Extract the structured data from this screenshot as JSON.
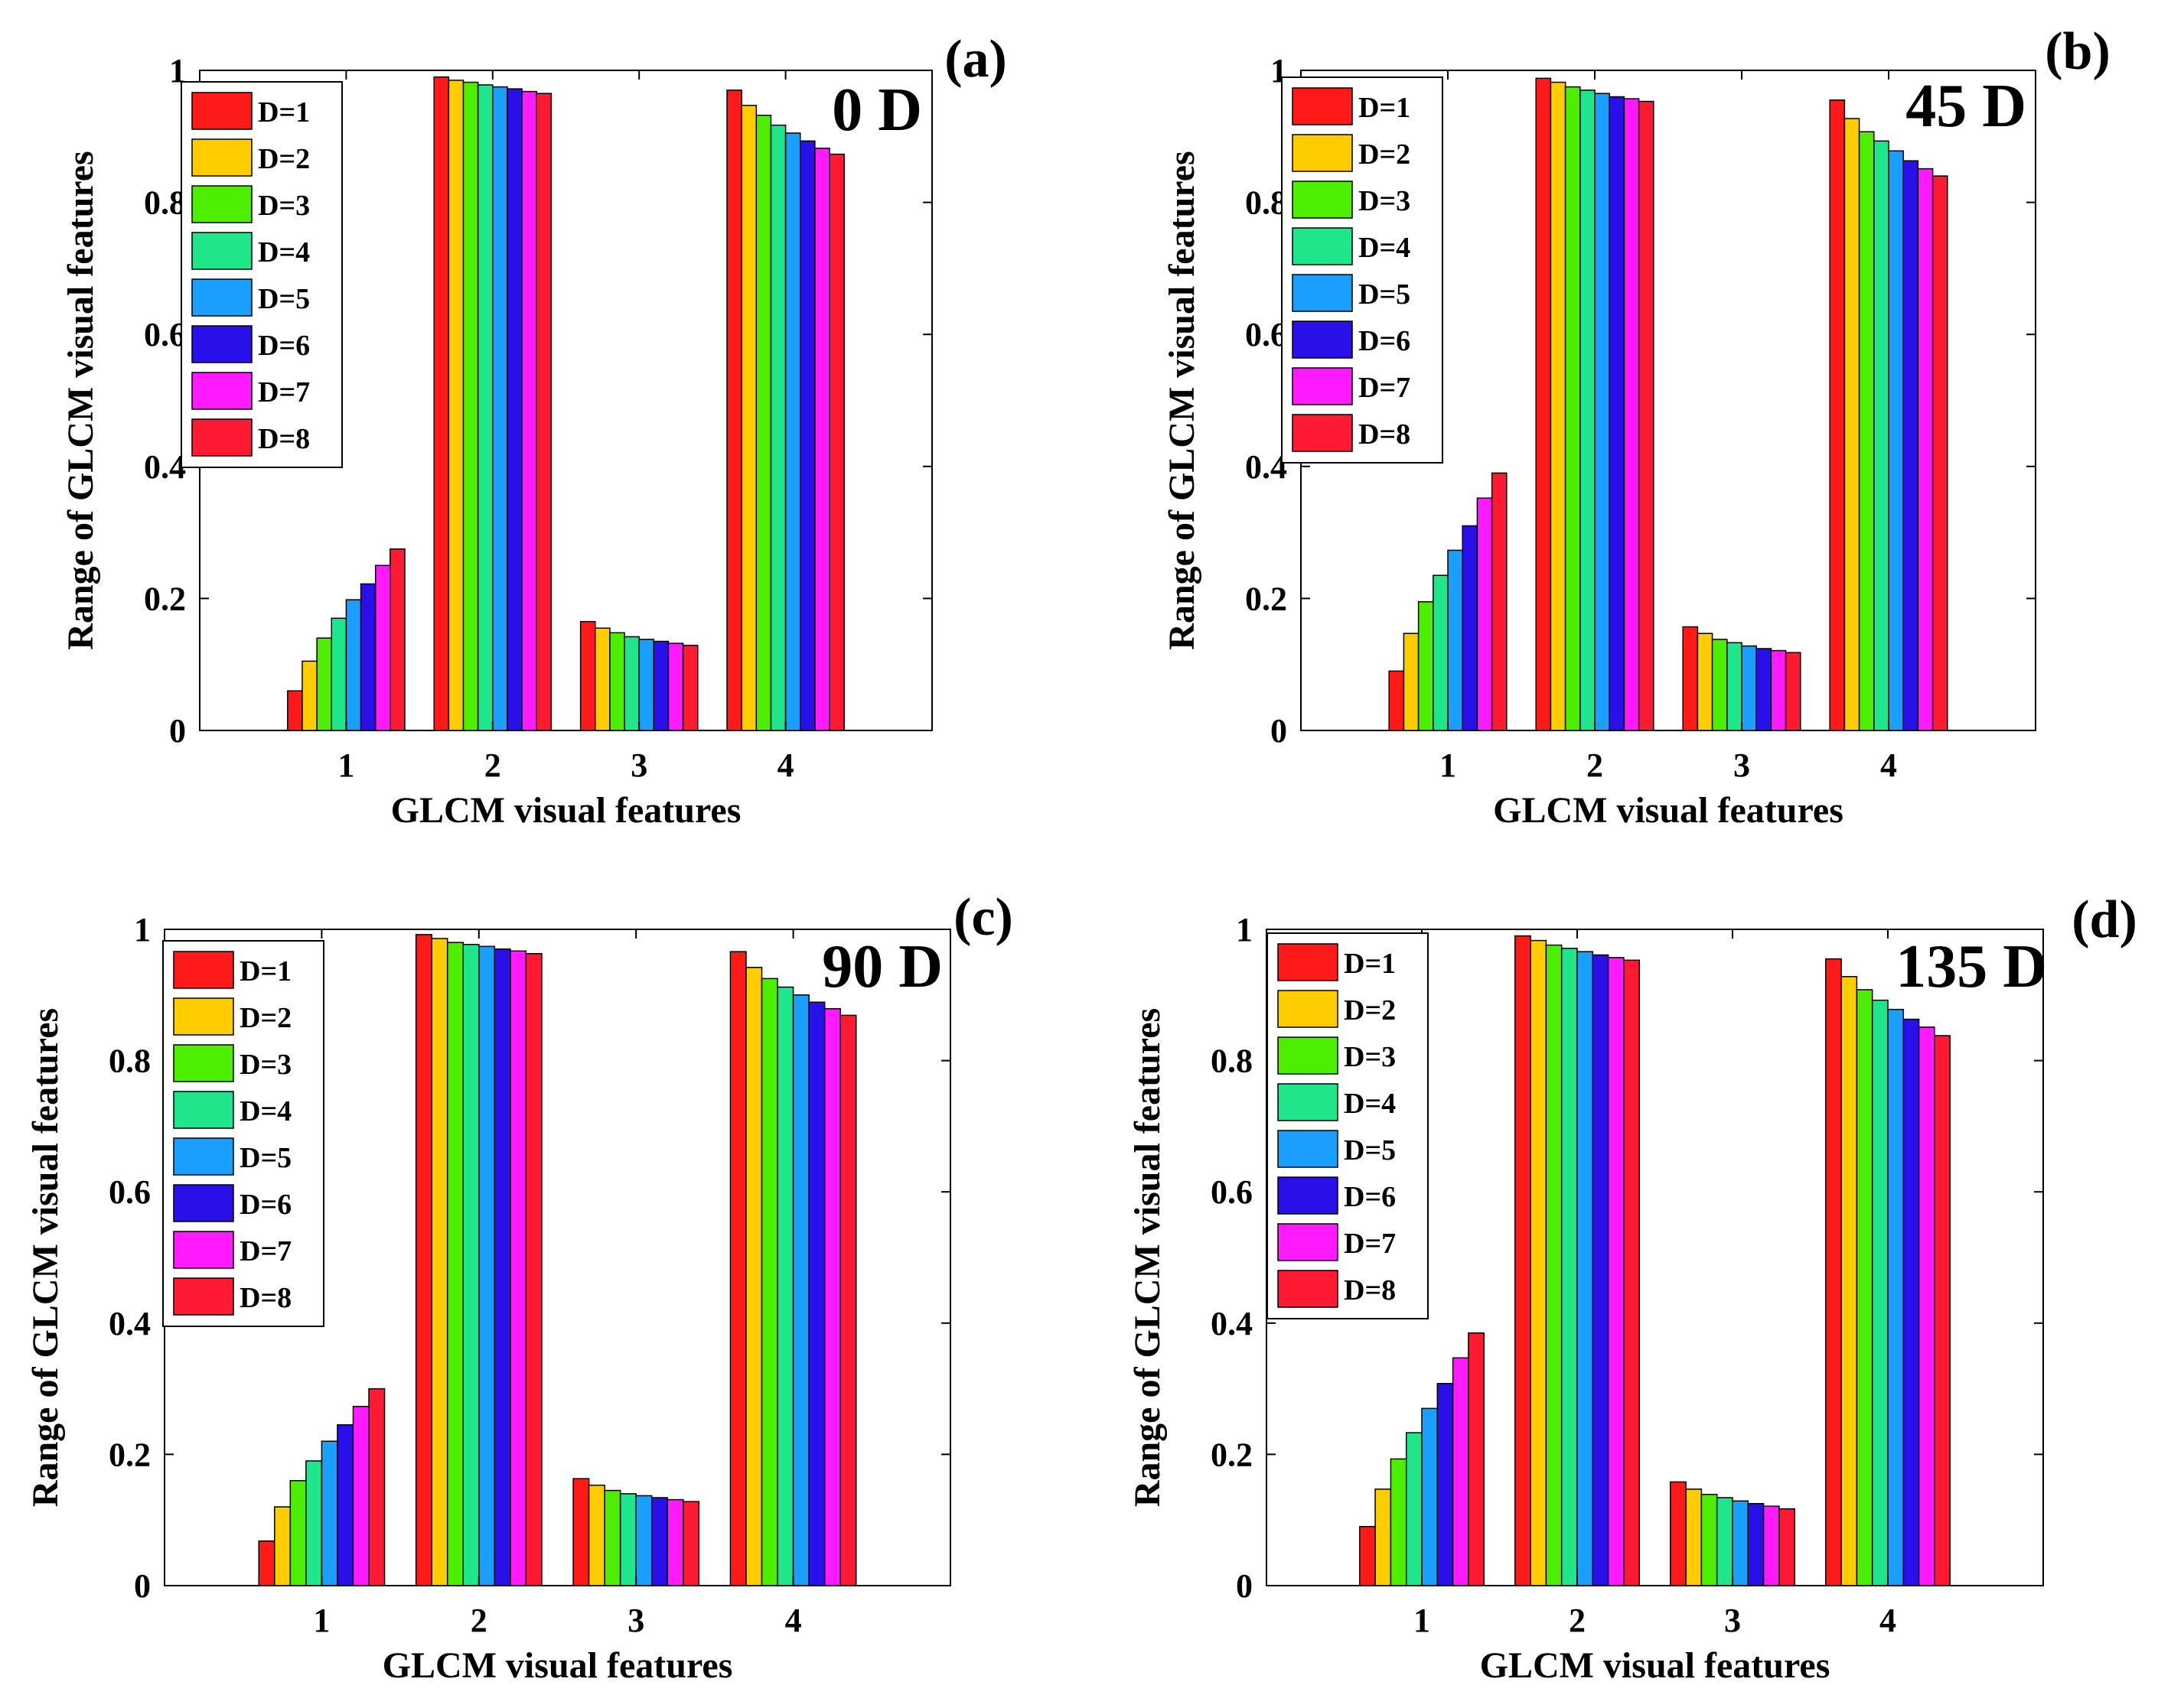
{
  "chart_data": [
    {
      "type": "bar",
      "panel_label": "(a)",
      "angle_label": "0 D",
      "title": "",
      "xlabel": "GLCM visual features",
      "ylabel": "Range of GLCM visual features",
      "categories": [
        "1",
        "2",
        "3",
        "4"
      ],
      "yticks": [
        "0",
        "0.2",
        "0.4",
        "0.6",
        "0.8",
        "1"
      ],
      "ylim": [
        0,
        1
      ],
      "grid": false,
      "legend_position": "top-left",
      "series": [
        {
          "name": "D=1",
          "color": "#ff1a1a",
          "values": [
            0.06,
            0.99,
            0.165,
            0.97
          ]
        },
        {
          "name": "D=2",
          "color": "#ffcc00",
          "values": [
            0.105,
            0.985,
            0.155,
            0.947
          ]
        },
        {
          "name": "D=3",
          "color": "#4dee00",
          "values": [
            0.14,
            0.982,
            0.148,
            0.932
          ]
        },
        {
          "name": "D=4",
          "color": "#1fe68a",
          "values": [
            0.17,
            0.978,
            0.142,
            0.917
          ]
        },
        {
          "name": "D=5",
          "color": "#1a9fff",
          "values": [
            0.198,
            0.975,
            0.138,
            0.905
          ]
        },
        {
          "name": "D=6",
          "color": "#2a10e8",
          "values": [
            0.222,
            0.972,
            0.135,
            0.893
          ]
        },
        {
          "name": "D=7",
          "color": "#ff1aff",
          "values": [
            0.25,
            0.968,
            0.132,
            0.882
          ]
        },
        {
          "name": "D=8",
          "color": "#ff1a33",
          "values": [
            0.275,
            0.965,
            0.129,
            0.873
          ]
        }
      ]
    },
    {
      "type": "bar",
      "panel_label": "(b)",
      "angle_label": "45 D",
      "title": "",
      "xlabel": "GLCM visual features",
      "ylabel": "Range of GLCM visual features",
      "categories": [
        "1",
        "2",
        "3",
        "4"
      ],
      "yticks": [
        "0",
        "0.2",
        "0.4",
        "0.6",
        "0.8",
        "1"
      ],
      "ylim": [
        0,
        1
      ],
      "grid": false,
      "legend_position": "top-left",
      "series": [
        {
          "name": "D=1",
          "color": "#ff1a1a",
          "values": [
            0.09,
            0.988,
            0.157,
            0.955
          ]
        },
        {
          "name": "D=2",
          "color": "#ffcc00",
          "values": [
            0.147,
            0.982,
            0.147,
            0.927
          ]
        },
        {
          "name": "D=3",
          "color": "#4dee00",
          "values": [
            0.195,
            0.975,
            0.138,
            0.907
          ]
        },
        {
          "name": "D=4",
          "color": "#1fe68a",
          "values": [
            0.235,
            0.97,
            0.133,
            0.893
          ]
        },
        {
          "name": "D=5",
          "color": "#1a9fff",
          "values": [
            0.273,
            0.965,
            0.128,
            0.878
          ]
        },
        {
          "name": "D=6",
          "color": "#2a10e8",
          "values": [
            0.31,
            0.96,
            0.124,
            0.863
          ]
        },
        {
          "name": "D=7",
          "color": "#ff1aff",
          "values": [
            0.352,
            0.957,
            0.121,
            0.851
          ]
        },
        {
          "name": "D=8",
          "color": "#ff1a33",
          "values": [
            0.39,
            0.953,
            0.118,
            0.84
          ]
        }
      ]
    },
    {
      "type": "bar",
      "panel_label": "(c)",
      "angle_label": "90 D",
      "title": "",
      "xlabel": "GLCM visual features",
      "ylabel": "Range of GLCM visual features",
      "categories": [
        "1",
        "2",
        "3",
        "4"
      ],
      "yticks": [
        "0",
        "0.2",
        "0.4",
        "0.6",
        "0.8",
        "1"
      ],
      "ylim": [
        0,
        1
      ],
      "grid": false,
      "legend_position": "top-left",
      "series": [
        {
          "name": "D=1",
          "color": "#ff1a1a",
          "values": [
            0.068,
            0.992,
            0.163,
            0.966
          ]
        },
        {
          "name": "D=2",
          "color": "#ffcc00",
          "values": [
            0.12,
            0.986,
            0.153,
            0.942
          ]
        },
        {
          "name": "D=3",
          "color": "#4dee00",
          "values": [
            0.16,
            0.98,
            0.145,
            0.925
          ]
        },
        {
          "name": "D=4",
          "color": "#1fe68a",
          "values": [
            0.19,
            0.977,
            0.14,
            0.912
          ]
        },
        {
          "name": "D=5",
          "color": "#1a9fff",
          "values": [
            0.22,
            0.974,
            0.137,
            0.9
          ]
        },
        {
          "name": "D=6",
          "color": "#2a10e8",
          "values": [
            0.245,
            0.97,
            0.134,
            0.889
          ]
        },
        {
          "name": "D=7",
          "color": "#ff1aff",
          "values": [
            0.273,
            0.967,
            0.131,
            0.879
          ]
        },
        {
          "name": "D=8",
          "color": "#ff1a33",
          "values": [
            0.3,
            0.963,
            0.128,
            0.869
          ]
        }
      ]
    },
    {
      "type": "bar",
      "panel_label": "(d)",
      "angle_label": "135 D",
      "title": "",
      "xlabel": "GLCM visual features",
      "ylabel": "Range of GLCM visual features",
      "categories": [
        "1",
        "2",
        "3",
        "4"
      ],
      "yticks": [
        "0",
        "0.2",
        "0.4",
        "0.6",
        "0.8",
        "1"
      ],
      "ylim": [
        0,
        1
      ],
      "grid": false,
      "legend_position": "top-left",
      "series": [
        {
          "name": "D=1",
          "color": "#ff1a1a",
          "values": [
            0.09,
            0.99,
            0.158,
            0.955
          ]
        },
        {
          "name": "D=2",
          "color": "#ffcc00",
          "values": [
            0.147,
            0.983,
            0.147,
            0.928
          ]
        },
        {
          "name": "D=3",
          "color": "#4dee00",
          "values": [
            0.193,
            0.976,
            0.139,
            0.908
          ]
        },
        {
          "name": "D=4",
          "color": "#1fe68a",
          "values": [
            0.233,
            0.971,
            0.134,
            0.892
          ]
        },
        {
          "name": "D=5",
          "color": "#1a9fff",
          "values": [
            0.27,
            0.966,
            0.129,
            0.878
          ]
        },
        {
          "name": "D=6",
          "color": "#2a10e8",
          "values": [
            0.308,
            0.961,
            0.125,
            0.863
          ]
        },
        {
          "name": "D=7",
          "color": "#ff1aff",
          "values": [
            0.347,
            0.957,
            0.121,
            0.851
          ]
        },
        {
          "name": "D=8",
          "color": "#ff1a33",
          "values": [
            0.385,
            0.953,
            0.117,
            0.838
          ]
        }
      ]
    }
  ]
}
